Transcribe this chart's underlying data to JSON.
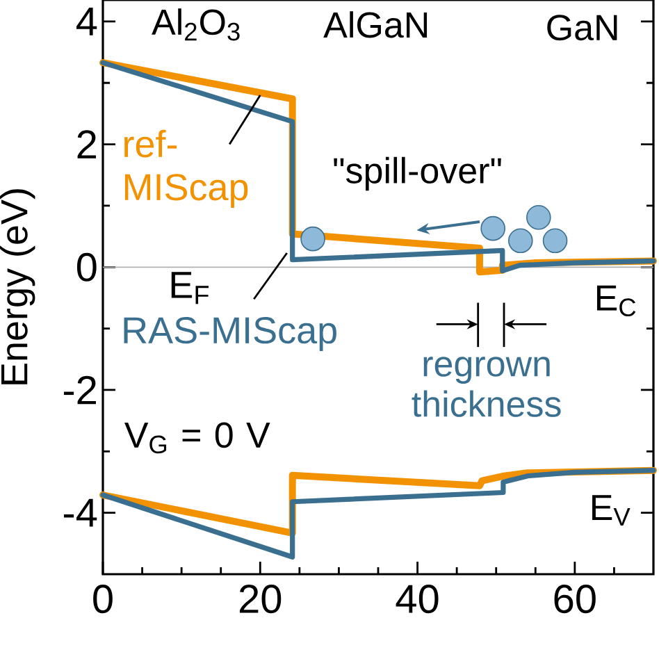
{
  "chart_data": {
    "type": "line",
    "ylabel": "Energy (eV)",
    "xlim": [
      0,
      70
    ],
    "ylim": [
      -5,
      4.35
    ],
    "xticks": [
      0,
      {
        "value": 5,
        "label": null
      },
      {
        "value": 10,
        "label": null
      },
      {
        "value": 15,
        "label": null
      },
      20,
      {
        "value": 25,
        "label": null
      },
      {
        "value": 30,
        "label": null
      },
      {
        "value": 35,
        "label": null
      },
      40,
      {
        "value": 45,
        "label": null
      },
      {
        "value": 50,
        "label": null
      },
      {
        "value": 55,
        "label": null
      },
      60,
      {
        "value": 65,
        "label": null
      }
    ],
    "yticks": [
      -4,
      {
        "value": -3,
        "label": null
      },
      -2,
      {
        "value": -1,
        "label": null
      },
      0,
      {
        "value": 1,
        "label": null
      },
      2,
      {
        "value": 3,
        "label": null
      },
      4
    ],
    "series": [
      {
        "name": "ref-MIScap",
        "color": "#f39200",
        "x": [
          0,
          24.1,
          24.1,
          47.9,
          47.9,
          50.8,
          50.8,
          55,
          70
        ],
        "values": [
          3.33,
          2.74,
          0.54,
          0.31,
          -0.08,
          -0.05,
          0.03,
          0.07,
          0.1
        ]
      },
      {
        "name": "RAS-MIScap",
        "color": "#3a6f8f",
        "x": [
          0,
          24.1,
          24.1,
          50.8,
          50.8,
          53,
          60,
          70
        ],
        "values": [
          3.33,
          2.37,
          0.12,
          0.27,
          -0.06,
          0.03,
          0.07,
          0.1
        ]
      },
      {
        "color": "#f39200",
        "x": [
          0,
          24.1,
          24.1,
          47.9,
          48.2,
          51,
          54,
          70
        ],
        "values": [
          -3.71,
          -4.33,
          -3.39,
          -3.56,
          -3.48,
          -3.4,
          -3.35,
          -3.31
        ]
      },
      {
        "color": "#3a6f8f",
        "x": [
          0,
          24.1,
          24.1,
          50.9,
          50.9,
          54,
          60,
          70
        ],
        "values": [
          -3.71,
          -4.72,
          -3.82,
          -3.67,
          -3.5,
          -3.4,
          -3.34,
          -3.31
        ]
      }
    ],
    "ref_lines": [
      {
        "axis": "y",
        "value": 0,
        "label": "E$_{F}$",
        "color": "#b0b0b0"
      }
    ],
    "annotations": [
      "Al$_{2}$O$_{3}$",
      "AlGaN",
      "GaN",
      "\"spill-over\"",
      "E$_{C}$",
      "regrown thickness",
      "V$_{G}$ = 0 V",
      "E$_{V}$"
    ]
  }
}
